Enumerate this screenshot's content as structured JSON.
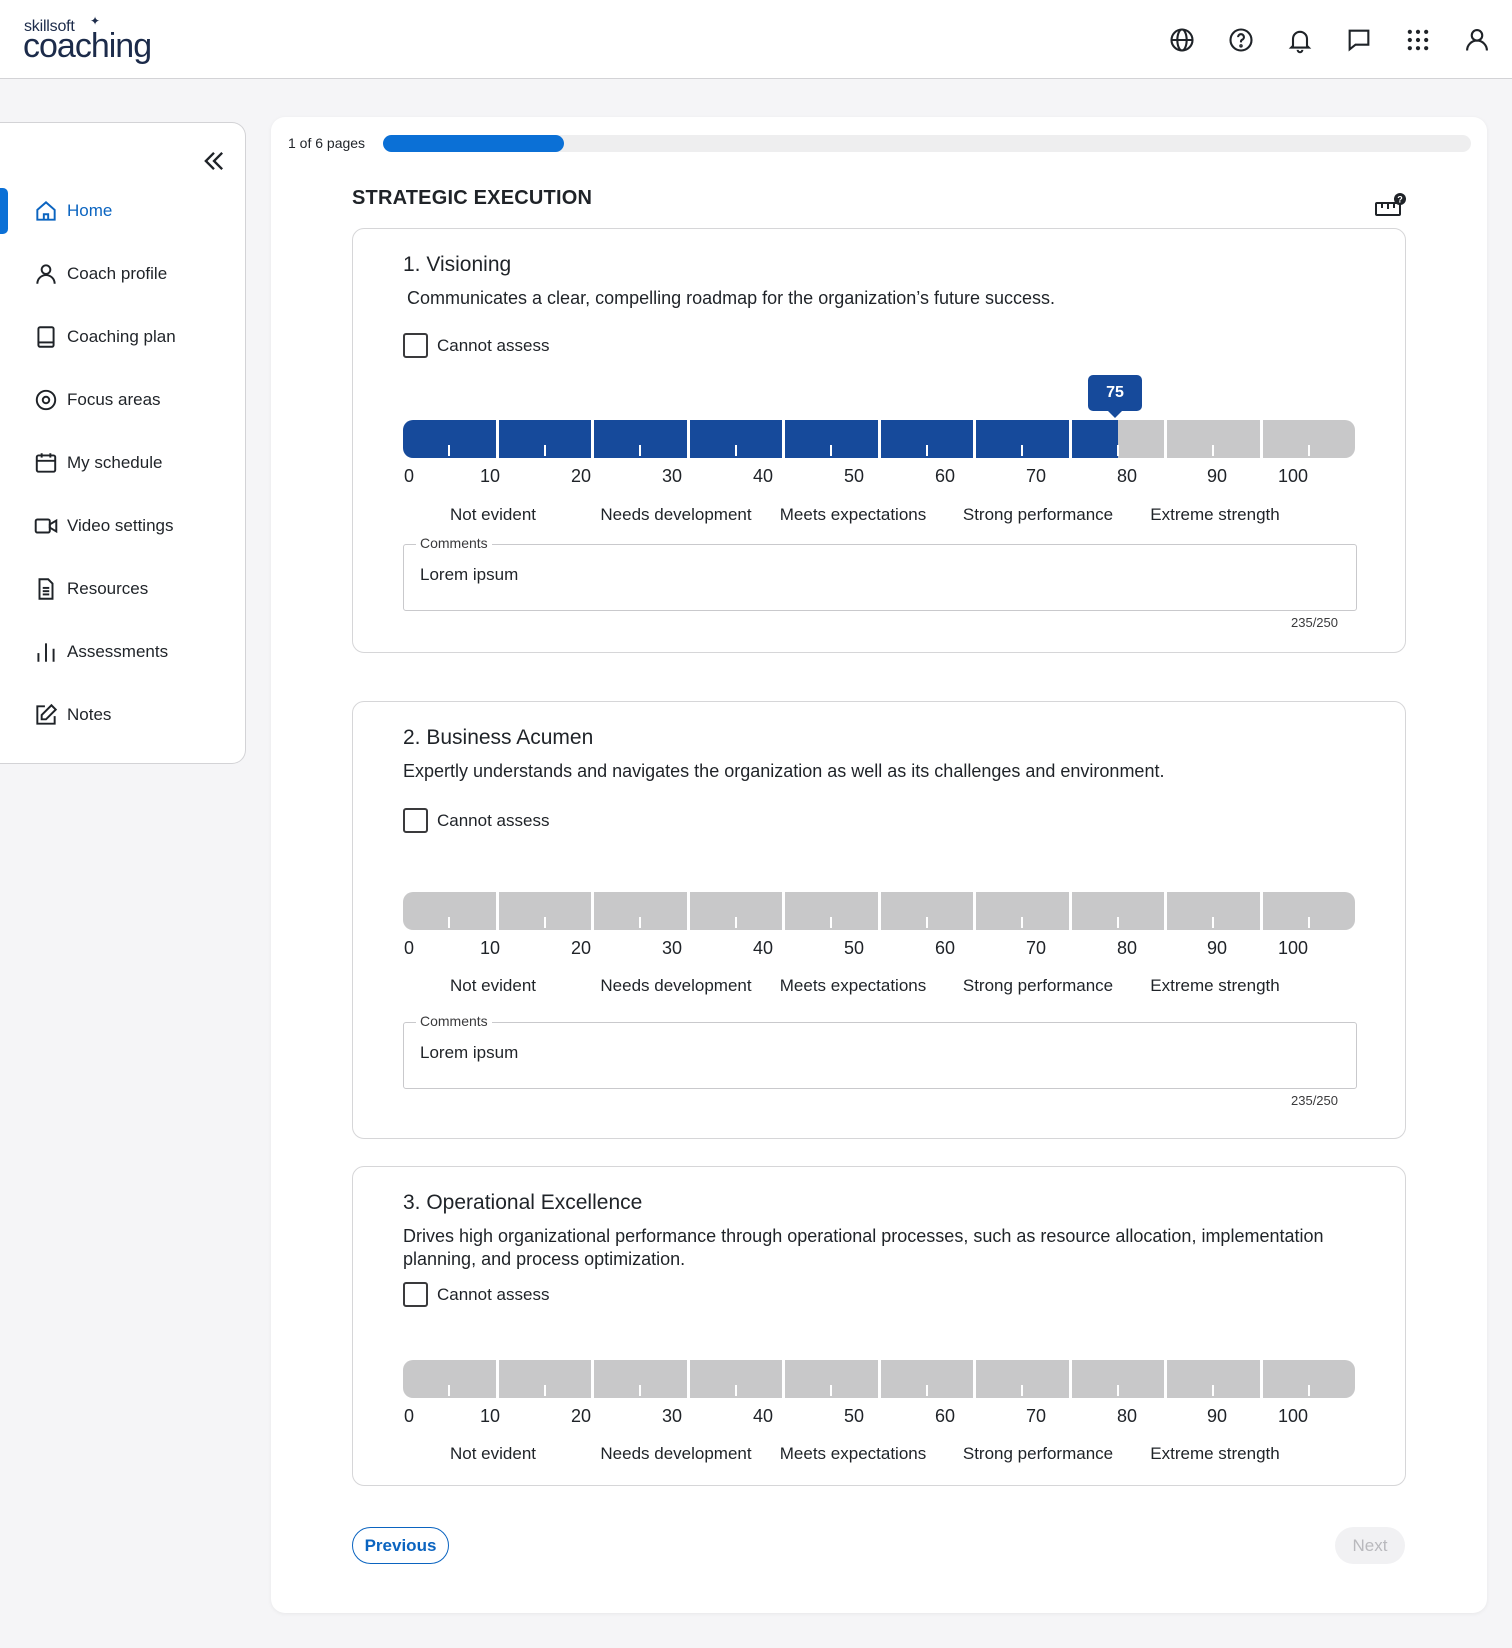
{
  "header": {
    "brand_small": "skillsoft",
    "brand_big": "coaching",
    "icons": [
      "globe-icon",
      "help-icon",
      "bell-icon",
      "chat-icon",
      "apps-grid-icon",
      "user-icon"
    ]
  },
  "sidebar": {
    "collapse_icon": "double-chevron-left-icon",
    "items": [
      {
        "label": "Home",
        "icon": "home-icon",
        "active": true
      },
      {
        "label": "Coach profile",
        "icon": "person-icon",
        "active": false
      },
      {
        "label": "Coaching plan",
        "icon": "book-icon",
        "active": false
      },
      {
        "label": "Focus areas",
        "icon": "target-icon",
        "active": false
      },
      {
        "label": "My schedule",
        "icon": "calendar-icon",
        "active": false
      },
      {
        "label": "Video settings",
        "icon": "video-icon",
        "active": false
      },
      {
        "label": "Resources",
        "icon": "document-icon",
        "active": false
      },
      {
        "label": "Assessments",
        "icon": "bar-chart-icon",
        "active": false
      },
      {
        "label": "Notes",
        "icon": "edit-note-icon",
        "active": false
      }
    ]
  },
  "progress": {
    "label": "1 of 6 pages",
    "fraction": 0.1667
  },
  "section": {
    "title": "STRATEGIC EXECUTION",
    "help_icon": "rating-scale-help-icon"
  },
  "scale": {
    "numbers": [
      "0",
      "10",
      "20",
      "30",
      "40",
      "50",
      "60",
      "70",
      "80",
      "90",
      "100"
    ],
    "labels": [
      "Not evident",
      "Needs development",
      "Meets expectations",
      "Strong performance",
      "Extreme strength"
    ]
  },
  "questions": [
    {
      "title": "1. Visioning",
      "description": "Communicates a clear, compelling roadmap for the organization’s future success.",
      "cannot_assess": "Cannot assess",
      "value": 75,
      "value_label": "75",
      "comments_label": "Comments",
      "comments_value": "Lorem ipsum",
      "counter": "235/250"
    },
    {
      "title": "2. Business Acumen",
      "description": "Expertly understands and navigates the organization as well as its challenges and environment.",
      "cannot_assess": "Cannot assess",
      "value": null,
      "comments_label": "Comments",
      "comments_value": "Lorem ipsum",
      "counter": "235/250"
    },
    {
      "title": "3. Operational Excellence",
      "description": "Drives high organizational performance through operational processes, such as resource allocation, implementation planning, and process optimization.",
      "cannot_assess": "Cannot assess",
      "value": null
    }
  ],
  "footer": {
    "previous": "Previous",
    "next": "Next"
  },
  "colors": {
    "accent": "#0b70d6",
    "slider_fill": "#164a9b",
    "slider_empty": "#c8c8c9"
  }
}
